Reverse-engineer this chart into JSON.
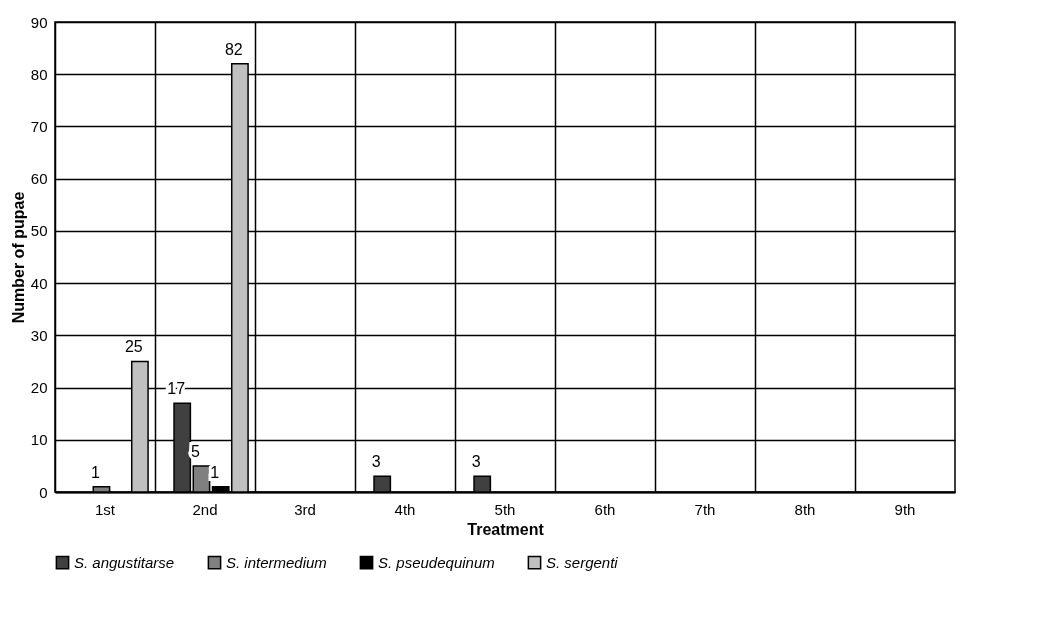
{
  "chart_data": {
    "type": "bar",
    "xlabel": "Treatment",
    "ylabel": "Number of pupae",
    "categories": [
      "1st",
      "2nd",
      "3rd",
      "4th",
      "5th",
      "6th",
      "7th",
      "8th",
      "9th"
    ],
    "series": [
      {
        "name": "S. angustitarse",
        "color": "#404040",
        "values": [
          null,
          17,
          null,
          3,
          3,
          null,
          null,
          null,
          null
        ],
        "value_labels": [
          null,
          "17",
          null,
          "3",
          "3",
          null,
          null,
          null,
          null
        ]
      },
      {
        "name": "S. intermedium",
        "color": "#808080",
        "values": [
          1,
          5,
          null,
          null,
          null,
          null,
          null,
          null,
          null
        ],
        "value_labels": [
          "1",
          "5",
          null,
          null,
          null,
          null,
          null,
          null,
          null
        ]
      },
      {
        "name": "S. pseudequinum",
        "color": "#000000",
        "values": [
          null,
          1,
          null,
          null,
          null,
          null,
          null,
          null,
          null
        ],
        "value_labels": [
          null,
          "1",
          null,
          null,
          null,
          null,
          null,
          null,
          null
        ]
      },
      {
        "name": "S. sergenti",
        "color": "#c0c0c0",
        "values": [
          25,
          82,
          null,
          null,
          null,
          null,
          null,
          null,
          null
        ],
        "value_labels": [
          "25",
          "82",
          null,
          null,
          null,
          null,
          null,
          null,
          null
        ]
      }
    ],
    "ylim": [
      0,
      90
    ],
    "yticks": [
      0,
      10,
      20,
      30,
      40,
      50,
      60,
      70,
      80,
      90
    ],
    "grid": true,
    "legend": "bottom"
  }
}
